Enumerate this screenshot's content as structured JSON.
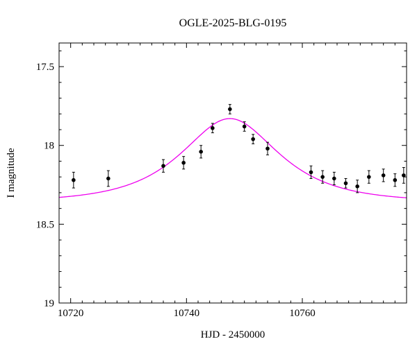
{
  "chart_data": {
    "type": "scatter",
    "title": "OGLE-2025-BLG-0195",
    "xlabel": "HJD - 2450000",
    "ylabel": "I magnitude",
    "x_range": [
      10718,
      10778
    ],
    "y_range_mag": [
      17.35,
      19.0
    ],
    "y_axis_inverted": true,
    "grid": false,
    "legend": "none",
    "x_major_ticks": [
      {
        "value": 10720,
        "label": "10720"
      },
      {
        "value": 10740,
        "label": "10740"
      },
      {
        "value": 10760,
        "label": "10760"
      }
    ],
    "x_minor_step": 2,
    "y_major_ticks": [
      {
        "value": 17.5,
        "label": "17.5"
      },
      {
        "value": 18.0,
        "label": "18"
      },
      {
        "value": 18.5,
        "label": "18.5"
      },
      {
        "value": 19.0,
        "label": "19"
      }
    ],
    "y_minor_step": 0.1,
    "points": [
      {
        "t": 10720.5,
        "mag": 18.22,
        "err": 0.05
      },
      {
        "t": 10726.5,
        "mag": 18.21,
        "err": 0.05
      },
      {
        "t": 10736.0,
        "mag": 18.13,
        "err": 0.04
      },
      {
        "t": 10739.5,
        "mag": 18.11,
        "err": 0.04
      },
      {
        "t": 10742.5,
        "mag": 18.04,
        "err": 0.04
      },
      {
        "t": 10744.5,
        "mag": 17.89,
        "err": 0.03
      },
      {
        "t": 10747.5,
        "mag": 17.77,
        "err": 0.03
      },
      {
        "t": 10750.0,
        "mag": 17.88,
        "err": 0.03
      },
      {
        "t": 10751.5,
        "mag": 17.96,
        "err": 0.03
      },
      {
        "t": 10754.0,
        "mag": 18.02,
        "err": 0.04
      },
      {
        "t": 10761.5,
        "mag": 18.17,
        "err": 0.04
      },
      {
        "t": 10763.5,
        "mag": 18.2,
        "err": 0.04
      },
      {
        "t": 10765.5,
        "mag": 18.21,
        "err": 0.04
      },
      {
        "t": 10767.5,
        "mag": 18.24,
        "err": 0.03
      },
      {
        "t": 10769.5,
        "mag": 18.26,
        "err": 0.04
      },
      {
        "t": 10771.5,
        "mag": 18.2,
        "err": 0.04
      },
      {
        "t": 10774.0,
        "mag": 18.19,
        "err": 0.04
      },
      {
        "t": 10776.0,
        "mag": 18.22,
        "err": 0.04
      },
      {
        "t": 10777.5,
        "mag": 18.19,
        "err": 0.05
      }
    ],
    "model": {
      "type": "point-source-point-lens",
      "t0": 10747.5,
      "tE": 12.0,
      "u0": 0.73,
      "I0_baseline": 18.36,
      "peak_mag": 17.83
    },
    "colors": {
      "model_curve": "#ee00ee",
      "data_points": "#000000",
      "axes": "#000000",
      "background": "#ffffff"
    }
  }
}
